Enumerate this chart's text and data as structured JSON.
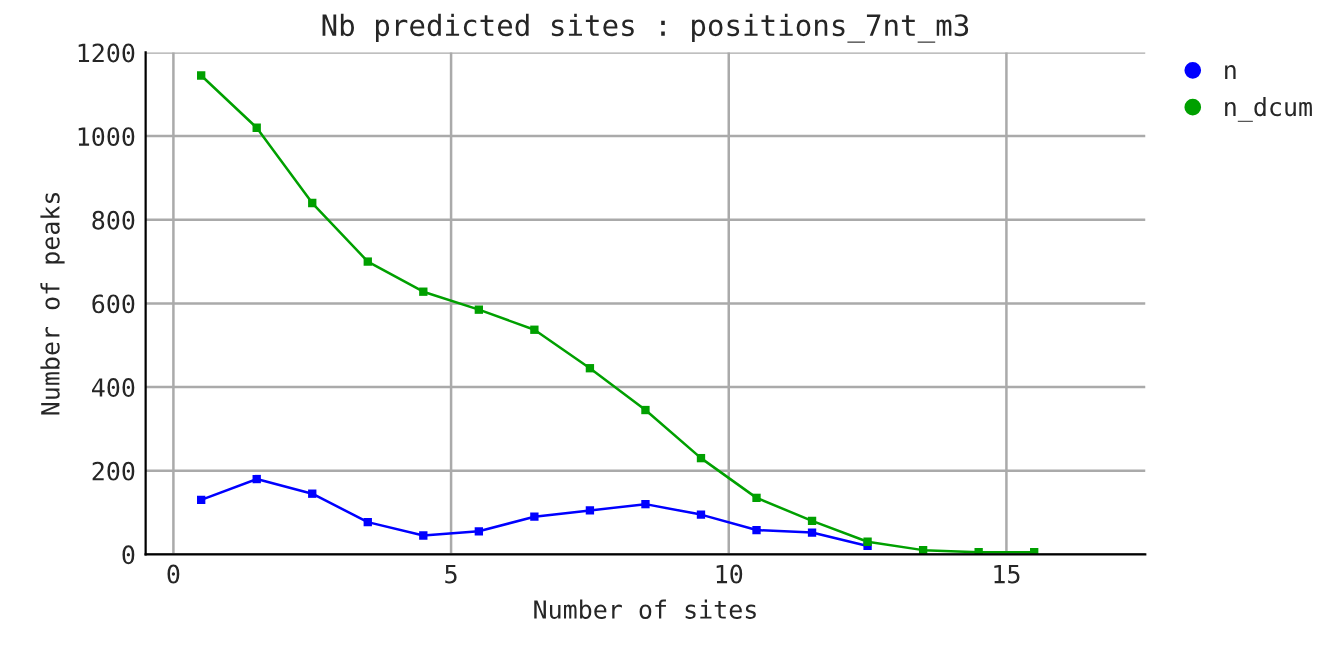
{
  "chart_data": {
    "type": "line",
    "title": "Nb predicted sites : positions_7nt_m3",
    "xlabel": "Number of sites",
    "ylabel": "Number of peaks",
    "x": [
      0.5,
      1.5,
      2.5,
      3.5,
      4.5,
      5.5,
      6.5,
      7.5,
      8.5,
      9.5,
      10.5,
      11.5,
      12.5,
      13.5,
      14.5,
      15.5
    ],
    "series": [
      {
        "name": "n",
        "color": "#0000ff",
        "values": [
          130,
          180,
          145,
          77,
          45,
          55,
          90,
          105,
          120,
          95,
          58,
          52,
          20,
          null,
          null,
          null
        ]
      },
      {
        "name": "n_dcum",
        "color": "#00a000",
        "values": [
          1145,
          1020,
          840,
          700,
          628,
          585,
          537,
          445,
          345,
          230,
          135,
          80,
          30,
          10,
          5,
          5
        ]
      }
    ],
    "xlim": [
      -0.5,
      17.5
    ],
    "xticks": [
      0,
      5,
      10,
      15
    ],
    "ylim": [
      0,
      1200
    ],
    "yticks": [
      0,
      200,
      400,
      600,
      800,
      1000,
      1200
    ],
    "grid": true,
    "legend": "top right",
    "marker": "square",
    "line_style": "solid"
  }
}
